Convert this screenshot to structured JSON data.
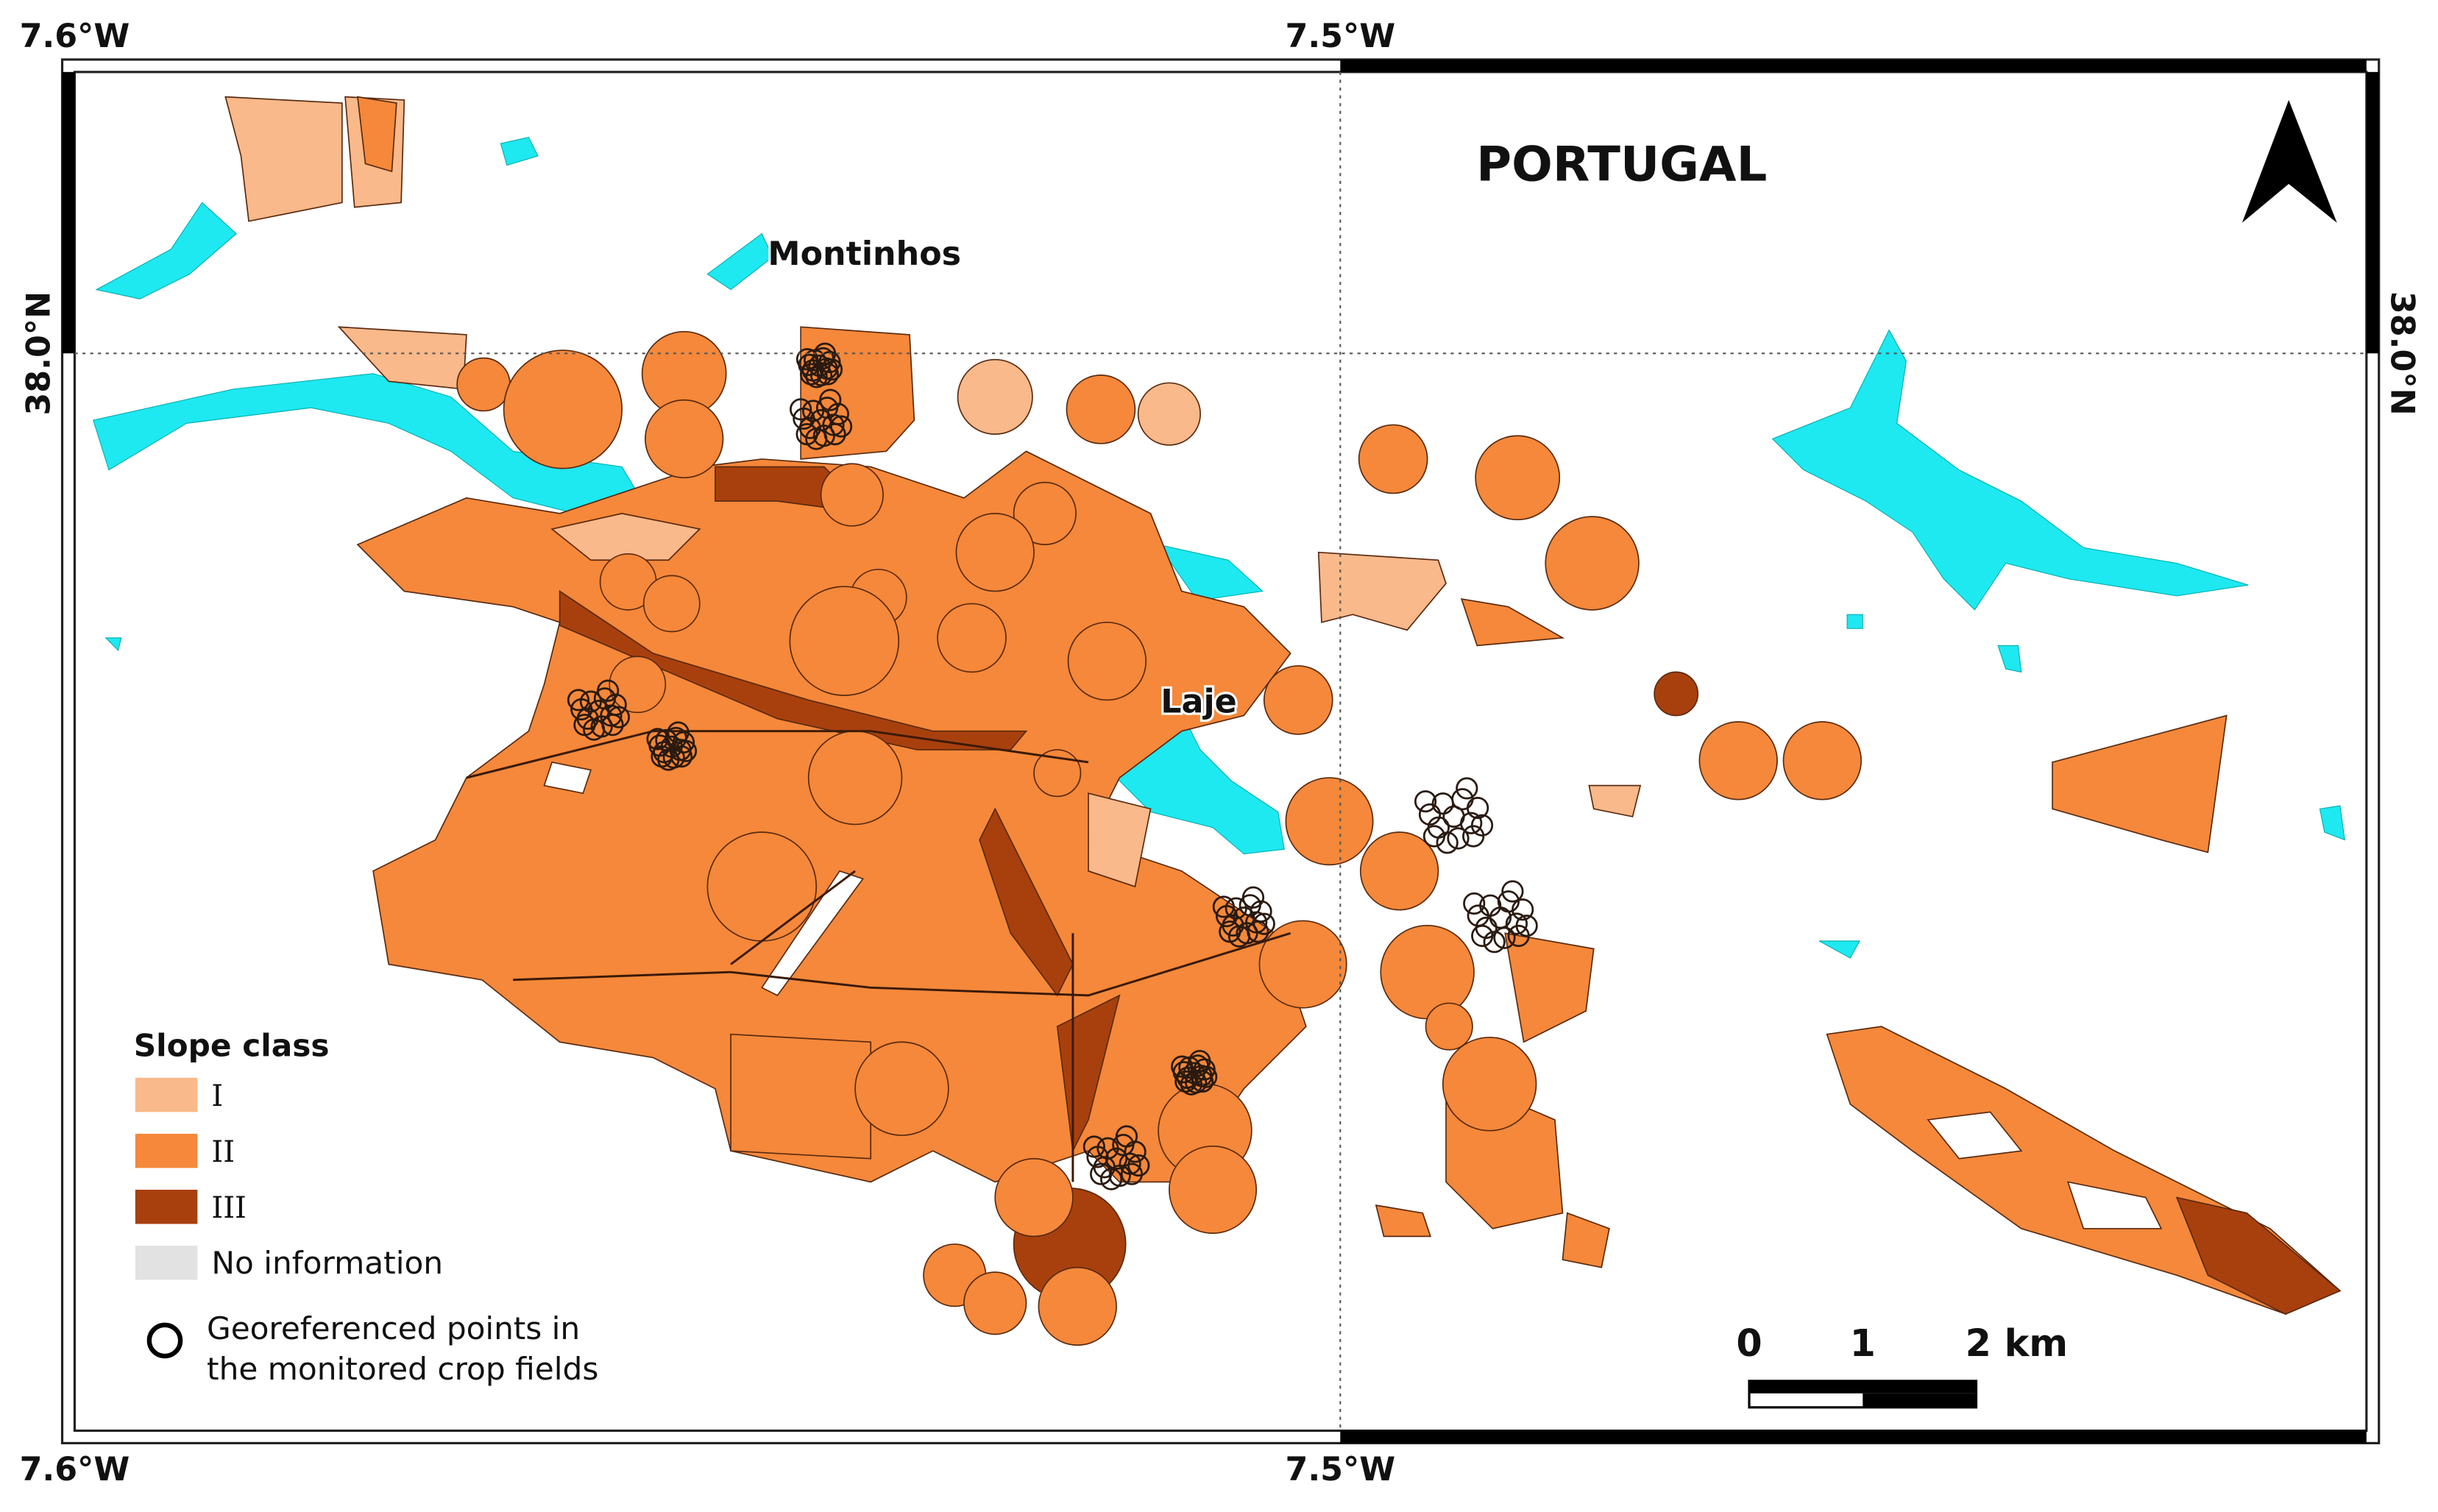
{
  "map": {
    "title": "PORTUGAL",
    "places": [
      "Montinhos",
      "Laje"
    ],
    "longitude_labels": {
      "top": [
        "7.6°W",
        "7.5°W"
      ],
      "bottom": [
        "7.6°W",
        "7.5°W"
      ]
    },
    "latitude_labels": {
      "left": "38.0°N",
      "right": "38.0°N"
    },
    "legend": {
      "title": "Slope class",
      "items": [
        "I",
        "II",
        "III",
        "No information"
      ],
      "points": [
        "Georeferenced points in",
        "the monitored crop fields"
      ]
    },
    "scale": [
      "0",
      "1",
      "2 km"
    ]
  }
}
